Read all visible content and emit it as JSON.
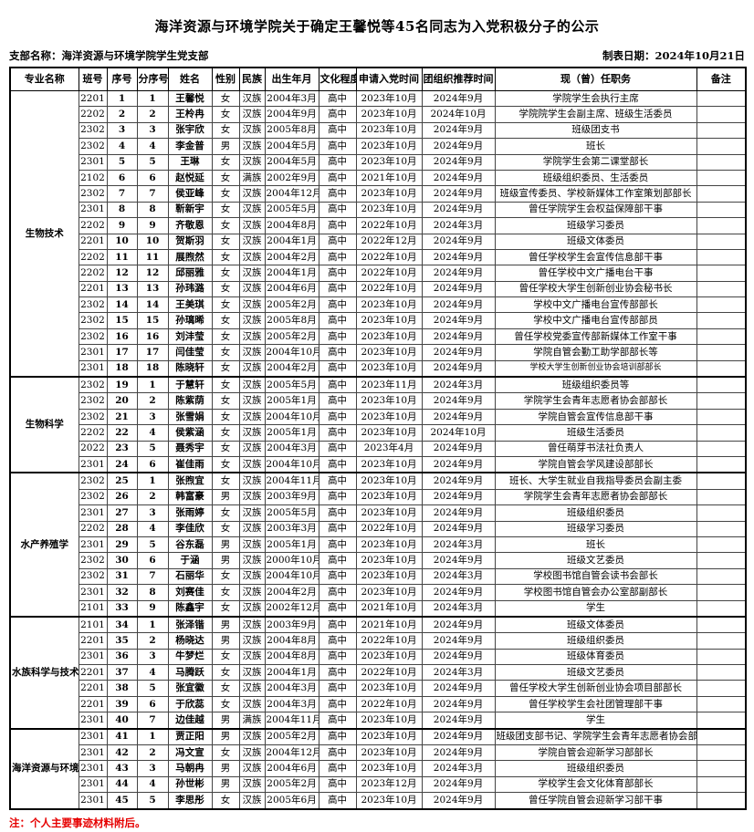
{
  "title": "海洋资源与环境学院关于确定王馨悦等45名同志为入党积极分子的公示",
  "meta": {
    "branch_label": "支部名称：海洋资源与环境学院学生党支部",
    "date_label": "制表日期：2024年10月21日"
  },
  "footnote": "注：个人主要事迹材料附后。",
  "table": {
    "headers": [
      "专业名称",
      "班号",
      "序号",
      "分序号",
      "姓名",
      "性别",
      "民族",
      "出生年月",
      "文化程度",
      "申请入党时间",
      "团组织推荐时间",
      "现（曾）任职务",
      "备注"
    ],
    "sections": [
      {
        "name": "生物技术",
        "start": 1,
        "count": 18
      },
      {
        "name": "生物科学",
        "start": 19,
        "count": 6
      },
      {
        "name": "水产养殖学",
        "start": 25,
        "count": 9
      },
      {
        "name": "水族科学与技术",
        "start": 34,
        "count": 7
      },
      {
        "name": "海洋资源与环境",
        "start": 41,
        "count": 5
      }
    ],
    "rows": [
      {
        "class_no": "2201",
        "seq": "1",
        "sub_seq": "1",
        "name": "王馨悦",
        "gender": "女",
        "ethnicity": "汉族",
        "birth": "2004年3月",
        "education": "高中",
        "apply_date": "2023年10月",
        "league_date": "2024年9月",
        "position": "学院学生会执行主席",
        "remark": ""
      },
      {
        "class_no": "2202",
        "seq": "2",
        "sub_seq": "2",
        "name": "王柃冉",
        "gender": "女",
        "ethnicity": "汉族",
        "birth": "2004年9月",
        "education": "高中",
        "apply_date": "2023年10月",
        "league_date": "2024年10月",
        "position": "学院院学生会副主席、班级生活委员",
        "remark": ""
      },
      {
        "class_no": "2302",
        "seq": "3",
        "sub_seq": "3",
        "name": "张宇欣",
        "gender": "女",
        "ethnicity": "汉族",
        "birth": "2005年8月",
        "education": "高中",
        "apply_date": "2023年10月",
        "league_date": "2024年9月",
        "position": "班级团支书",
        "remark": ""
      },
      {
        "class_no": "2302",
        "seq": "4",
        "sub_seq": "4",
        "name": "李金普",
        "gender": "男",
        "ethnicity": "汉族",
        "birth": "2004年5月",
        "education": "高中",
        "apply_date": "2023年10月",
        "league_date": "2024年9月",
        "position": "班长",
        "remark": ""
      },
      {
        "class_no": "2301",
        "seq": "5",
        "sub_seq": "5",
        "name": "王琳",
        "gender": "女",
        "ethnicity": "汉族",
        "birth": "2004年5月",
        "education": "高中",
        "apply_date": "2023年10月",
        "league_date": "2024年9月",
        "position": "学院学生会第二课堂部长",
        "remark": ""
      },
      {
        "class_no": "2102",
        "seq": "6",
        "sub_seq": "6",
        "name": "赵悦延",
        "gender": "女",
        "ethnicity": "满族",
        "birth": "2002年9月",
        "education": "高中",
        "apply_date": "2021年10月",
        "league_date": "2024年9月",
        "position": "班级组织委员、生活委员",
        "remark": ""
      },
      {
        "class_no": "2302",
        "seq": "7",
        "sub_seq": "7",
        "name": "侯亚峰",
        "gender": "女",
        "ethnicity": "汉族",
        "birth": "2004年12月",
        "education": "高中",
        "apply_date": "2023年10月",
        "league_date": "2024年9月",
        "position": "班级宣传委员、学校新媒体工作室策划部部长",
        "remark": ""
      },
      {
        "class_no": "2301",
        "seq": "8",
        "sub_seq": "8",
        "name": "靳新宇",
        "gender": "女",
        "ethnicity": "汉族",
        "birth": "2005年5月",
        "education": "高中",
        "apply_date": "2023年10月",
        "league_date": "2024年9月",
        "position": "曾任学院学生会权益保障部干事",
        "remark": ""
      },
      {
        "class_no": "2202",
        "seq": "9",
        "sub_seq": "9",
        "name": "齐敬恩",
        "gender": "女",
        "ethnicity": "汉族",
        "birth": "2004年8月",
        "education": "高中",
        "apply_date": "2022年10月",
        "league_date": "2024年3月",
        "position": "班级学习委员",
        "remark": ""
      },
      {
        "class_no": "2201",
        "seq": "10",
        "sub_seq": "10",
        "name": "贺斯羽",
        "gender": "女",
        "ethnicity": "汉族",
        "birth": "2004年1月",
        "education": "高中",
        "apply_date": "2022年12月",
        "league_date": "2024年9月",
        "position": "班级文体委员",
        "remark": ""
      },
      {
        "class_no": "2202",
        "seq": "11",
        "sub_seq": "11",
        "name": "展煦然",
        "gender": "女",
        "ethnicity": "汉族",
        "birth": "2004年2月",
        "education": "高中",
        "apply_date": "2022年10月",
        "league_date": "2024年9月",
        "position": "曾任学校学生会宣传信息部干事",
        "remark": ""
      },
      {
        "class_no": "2202",
        "seq": "12",
        "sub_seq": "12",
        "name": "邱丽雅",
        "gender": "女",
        "ethnicity": "汉族",
        "birth": "2004年1月",
        "education": "高中",
        "apply_date": "2022年10月",
        "league_date": "2024年9月",
        "position": "曾任学校中文广播电台干事",
        "remark": ""
      },
      {
        "class_no": "2201",
        "seq": "13",
        "sub_seq": "13",
        "name": "孙玮潞",
        "gender": "女",
        "ethnicity": "汉族",
        "birth": "2004年6月",
        "education": "高中",
        "apply_date": "2022年10月",
        "league_date": "2024年9月",
        "position": "曾任学校大学生创新创业协会秘书长",
        "remark": ""
      },
      {
        "class_no": "2302",
        "seq": "14",
        "sub_seq": "14",
        "name": "王美琪",
        "gender": "女",
        "ethnicity": "汉族",
        "birth": "2005年2月",
        "education": "高中",
        "apply_date": "2023年10月",
        "league_date": "2024年9月",
        "position": "学校中文广播电台宣传部部长",
        "remark": ""
      },
      {
        "class_no": "2302",
        "seq": "15",
        "sub_seq": "15",
        "name": "孙璃晞",
        "gender": "女",
        "ethnicity": "汉族",
        "birth": "2005年8月",
        "education": "高中",
        "apply_date": "2023年10月",
        "league_date": "2024年9月",
        "position": "学校中文广播电台宣传部部员",
        "remark": ""
      },
      {
        "class_no": "2302",
        "seq": "16",
        "sub_seq": "16",
        "name": "刘沣莹",
        "gender": "女",
        "ethnicity": "汉族",
        "birth": "2005年2月",
        "education": "高中",
        "apply_date": "2023年10月",
        "league_date": "2024年9月",
        "position": "曾任学校党委宣传部新媒体工作室干事",
        "remark": ""
      },
      {
        "class_no": "2301",
        "seq": "17",
        "sub_seq": "17",
        "name": "闫佳莹",
        "gender": "女",
        "ethnicity": "汉族",
        "birth": "2004年10月",
        "education": "高中",
        "apply_date": "2023年10月",
        "league_date": "2024年9月",
        "position": "学院自管会勤工助学部部长等",
        "remark": ""
      },
      {
        "class_no": "2301",
        "seq": "18",
        "sub_seq": "18",
        "name": "陈晓轩",
        "gender": "女",
        "ethnicity": "汉族",
        "birth": "2004年2月",
        "education": "高中",
        "apply_date": "2023年10月",
        "league_date": "2024年9月",
        "position": "学校大学生创新创业协会培训部部长",
        "remark": "",
        "small": true
      },
      {
        "class_no": "2302",
        "seq": "19",
        "sub_seq": "1",
        "name": "于慧轩",
        "gender": "女",
        "ethnicity": "汉族",
        "birth": "2005年5月",
        "education": "高中",
        "apply_date": "2023年11月",
        "league_date": "2024年3月",
        "position": "班级组织委员等",
        "remark": ""
      },
      {
        "class_no": "2302",
        "seq": "20",
        "sub_seq": "2",
        "name": "陈紫荫",
        "gender": "女",
        "ethnicity": "汉族",
        "birth": "2005年1月",
        "education": "高中",
        "apply_date": "2023年10月",
        "league_date": "2024年9月",
        "position": "学院学生会青年志愿者协会部部长",
        "remark": ""
      },
      {
        "class_no": "2302",
        "seq": "21",
        "sub_seq": "3",
        "name": "张雪娟",
        "gender": "女",
        "ethnicity": "汉族",
        "birth": "2004年10月",
        "education": "高中",
        "apply_date": "2023年10月",
        "league_date": "2024年9月",
        "position": "学院自管会宣传信息部干事",
        "remark": ""
      },
      {
        "class_no": "2202",
        "seq": "22",
        "sub_seq": "4",
        "name": "侯紫涵",
        "gender": "女",
        "ethnicity": "汉族",
        "birth": "2005年1月",
        "education": "高中",
        "apply_date": "2023年10月",
        "league_date": "2024年10月",
        "position": "班级生活委员",
        "remark": ""
      },
      {
        "class_no": "2022",
        "seq": "23",
        "sub_seq": "5",
        "name": "聂秀宇",
        "gender": "女",
        "ethnicity": "汉族",
        "birth": "2004年3月",
        "education": "高中",
        "apply_date": "2023年4月",
        "league_date": "2024年9月",
        "position": "曾任萌芽书法社负责人",
        "remark": ""
      },
      {
        "class_no": "2301",
        "seq": "24",
        "sub_seq": "6",
        "name": "崔佳雨",
        "gender": "女",
        "ethnicity": "汉族",
        "birth": "2004年10月",
        "education": "高中",
        "apply_date": "2023年10月",
        "league_date": "2024年9月",
        "position": "学院自管会学风建设部部长",
        "remark": ""
      },
      {
        "class_no": "2302",
        "seq": "25",
        "sub_seq": "1",
        "name": "张煦宜",
        "gender": "女",
        "ethnicity": "汉族",
        "birth": "2004年11月",
        "education": "高中",
        "apply_date": "2023年10月",
        "league_date": "2024年9月",
        "position": "班长、大学生就业自我指导委员会副主委",
        "remark": ""
      },
      {
        "class_no": "2302",
        "seq": "26",
        "sub_seq": "2",
        "name": "韩富豪",
        "gender": "男",
        "ethnicity": "汉族",
        "birth": "2003年9月",
        "education": "高中",
        "apply_date": "2023年10月",
        "league_date": "2024年9月",
        "position": "学院学生会青年志愿者协会部部长",
        "remark": ""
      },
      {
        "class_no": "2301",
        "seq": "27",
        "sub_seq": "3",
        "name": "张雨婷",
        "gender": "女",
        "ethnicity": "汉族",
        "birth": "2005年5月",
        "education": "高中",
        "apply_date": "2023年10月",
        "league_date": "2024年9月",
        "position": "班级组织委员",
        "remark": ""
      },
      {
        "class_no": "2202",
        "seq": "28",
        "sub_seq": "4",
        "name": "李佳欣",
        "gender": "女",
        "ethnicity": "汉族",
        "birth": "2003年3月",
        "education": "高中",
        "apply_date": "2022年10月",
        "league_date": "2024年9月",
        "position": "班级学习委员",
        "remark": ""
      },
      {
        "class_no": "2301",
        "seq": "29",
        "sub_seq": "5",
        "name": "谷东磊",
        "gender": "男",
        "ethnicity": "汉族",
        "birth": "2005年1月",
        "education": "高中",
        "apply_date": "2023年10月",
        "league_date": "2024年3月",
        "position": "班长",
        "remark": ""
      },
      {
        "class_no": "2302",
        "seq": "30",
        "sub_seq": "6",
        "name": "于涵",
        "gender": "男",
        "ethnicity": "汉族",
        "birth": "2000年10月",
        "education": "高中",
        "apply_date": "2023年10月",
        "league_date": "2024年9月",
        "position": "班级文艺委员",
        "remark": ""
      },
      {
        "class_no": "2302",
        "seq": "31",
        "sub_seq": "7",
        "name": "石丽华",
        "gender": "女",
        "ethnicity": "汉族",
        "birth": "2004年10月",
        "education": "高中",
        "apply_date": "2023年10月",
        "league_date": "2024年3月",
        "position": "学校图书馆自管会读书会部长",
        "remark": ""
      },
      {
        "class_no": "2301",
        "seq": "32",
        "sub_seq": "8",
        "name": "刘赛佳",
        "gender": "女",
        "ethnicity": "汉族",
        "birth": "2004年2月",
        "education": "高中",
        "apply_date": "2023年10月",
        "league_date": "2024年9月",
        "position": "学校图书馆自管会办公室部副部长",
        "remark": ""
      },
      {
        "class_no": "2101",
        "seq": "33",
        "sub_seq": "9",
        "name": "陈鑫宇",
        "gender": "女",
        "ethnicity": "汉族",
        "birth": "2002年12月",
        "education": "高中",
        "apply_date": "2021年10月",
        "league_date": "2024年3月",
        "position": "学生",
        "remark": ""
      },
      {
        "class_no": "2101",
        "seq": "34",
        "sub_seq": "1",
        "name": "张泽锴",
        "gender": "男",
        "ethnicity": "汉族",
        "birth": "2003年9月",
        "education": "高中",
        "apply_date": "2021年10月",
        "league_date": "2024年9月",
        "position": "班级文体委员",
        "remark": ""
      },
      {
        "class_no": "2201",
        "seq": "35",
        "sub_seq": "2",
        "name": "杨晓达",
        "gender": "男",
        "ethnicity": "汉族",
        "birth": "2004年8月",
        "education": "高中",
        "apply_date": "2022年10月",
        "league_date": "2024年9月",
        "position": "班级组织委员",
        "remark": ""
      },
      {
        "class_no": "2301",
        "seq": "36",
        "sub_seq": "3",
        "name": "牛梦烂",
        "gender": "女",
        "ethnicity": "汉族",
        "birth": "2004年8月",
        "education": "高中",
        "apply_date": "2023年10月",
        "league_date": "2024年9月",
        "position": "班级体育委员",
        "remark": ""
      },
      {
        "class_no": "2201",
        "seq": "37",
        "sub_seq": "4",
        "name": "马腾跃",
        "gender": "女",
        "ethnicity": "汉族",
        "birth": "2004年1月",
        "education": "高中",
        "apply_date": "2022年10月",
        "league_date": "2024年3月",
        "position": "班级文艺委员",
        "remark": ""
      },
      {
        "class_no": "2201",
        "seq": "38",
        "sub_seq": "5",
        "name": "张宜徽",
        "gender": "女",
        "ethnicity": "汉族",
        "birth": "2004年3月",
        "education": "高中",
        "apply_date": "2023年10月",
        "league_date": "2024年9月",
        "position": "曾任学校大学生创新创业协会项目部部长",
        "remark": ""
      },
      {
        "class_no": "2201",
        "seq": "39",
        "sub_seq": "6",
        "name": "于欣蕊",
        "gender": "女",
        "ethnicity": "汉族",
        "birth": "2004年3月",
        "education": "高中",
        "apply_date": "2022年10月",
        "league_date": "2024年9月",
        "position": "曾任学校学生会社团管理部干事",
        "remark": ""
      },
      {
        "class_no": "2301",
        "seq": "40",
        "sub_seq": "7",
        "name": "边佳越",
        "gender": "男",
        "ethnicity": "满族",
        "birth": "2004年11月",
        "education": "高中",
        "apply_date": "2023年10月",
        "league_date": "2024年9月",
        "position": "学生",
        "remark": ""
      },
      {
        "class_no": "2301",
        "seq": "41",
        "sub_seq": "1",
        "name": "贾正阳",
        "gender": "男",
        "ethnicity": "汉族",
        "birth": "2005年2月",
        "education": "高中",
        "apply_date": "2023年10月",
        "league_date": "2024年9月",
        "position": "班级团支部书记、学院学生会青年志愿者协会部部长",
        "remark": ""
      },
      {
        "class_no": "2301",
        "seq": "42",
        "sub_seq": "2",
        "name": "冯文宣",
        "gender": "女",
        "ethnicity": "汉族",
        "birth": "2004年12月",
        "education": "高中",
        "apply_date": "2023年10月",
        "league_date": "2024年9月",
        "position": "学院自管会迎新学习部部长",
        "remark": ""
      },
      {
        "class_no": "2301",
        "seq": "43",
        "sub_seq": "3",
        "name": "马朝冉",
        "gender": "男",
        "ethnicity": "汉族",
        "birth": "2004年6月",
        "education": "高中",
        "apply_date": "2023年10月",
        "league_date": "2024年3月",
        "position": "班级组织委员",
        "remark": ""
      },
      {
        "class_no": "2301",
        "seq": "44",
        "sub_seq": "4",
        "name": "孙世彬",
        "gender": "男",
        "ethnicity": "汉族",
        "birth": "2005年2月",
        "education": "高中",
        "apply_date": "2023年12月",
        "league_date": "2024年9月",
        "position": "学校学生会文化体育部部长",
        "remark": ""
      },
      {
        "class_no": "2301",
        "seq": "45",
        "sub_seq": "5",
        "name": "李思彤",
        "gender": "女",
        "ethnicity": "汉族",
        "birth": "2005年6月",
        "education": "高中",
        "apply_date": "2023年10月",
        "league_date": "2024年9月",
        "position": "曾任学院自管会迎新学习部干事",
        "remark": ""
      }
    ]
  }
}
